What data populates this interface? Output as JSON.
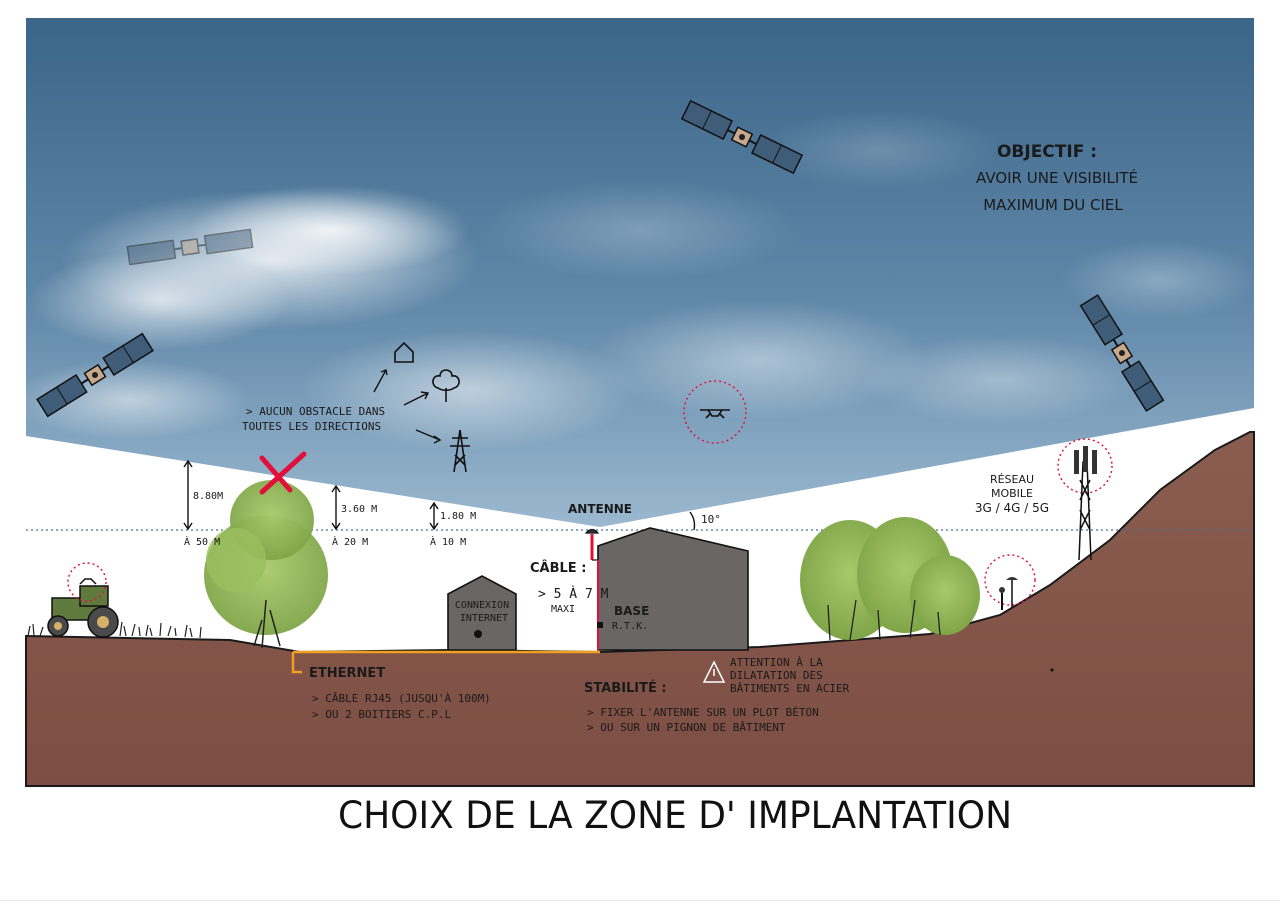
{
  "objective": {
    "title": "OBJECTIF :",
    "line1": "AVOIR UNE VISIBILITÉ",
    "line2": "MAXIMUM DU CIEL"
  },
  "obstacles": {
    "line1": "> AUCUN OBSTACLE DANS",
    "line2": "TOUTES LES DIRECTIONS"
  },
  "heights": {
    "h1": "8.80M",
    "d1": "À 50 M",
    "h2": "3.60 M",
    "d2": "À 20 M",
    "h3": "1.80 M",
    "d3": "À 10 M"
  },
  "angle": "10°",
  "antenna_label": "ANTENNE",
  "cable": {
    "title": "CÂBLE :",
    "line1": "> 5 À 7 M",
    "line2": "MAXI"
  },
  "base": {
    "title": "BASE",
    "sub": "R.T.K."
  },
  "connexion": {
    "line1": "CONNEXION",
    "line2": "INTERNET"
  },
  "mobile": {
    "line1": "RÉSEAU",
    "line2": "MOBILE",
    "line3": "3G / 4G / 5G"
  },
  "ethernet": {
    "title": "ETHERNET",
    "line1": "> CÂBLE RJ45 (JUSQU'À 100M)",
    "line2": "> OU 2 BOITIERS C.P.L"
  },
  "stability": {
    "title": "STABILITÉ :",
    "line1": "> FIXER L'ANTENNE SUR UN PLOT BÉTON",
    "line2": "> OU SUR UN PIGNON DE BÂTIMENT"
  },
  "warning": {
    "line1": "ATTENTION À LA",
    "line2": "DILATATION DES",
    "line3": "BÂTIMENTS EN ACIER"
  },
  "caption": "CHOIX DE LA ZONE D' IMPLANTATION",
  "colors": {
    "sky_dark": "#3d6a8f",
    "sky_mid": "#6c93b3",
    "ground": "#8f6255",
    "ground_dark": "#7a5046",
    "building": "#6b6666",
    "tree": "#8fb356",
    "accent_red": "#e0103a",
    "cable_orange": "#f0a020"
  }
}
